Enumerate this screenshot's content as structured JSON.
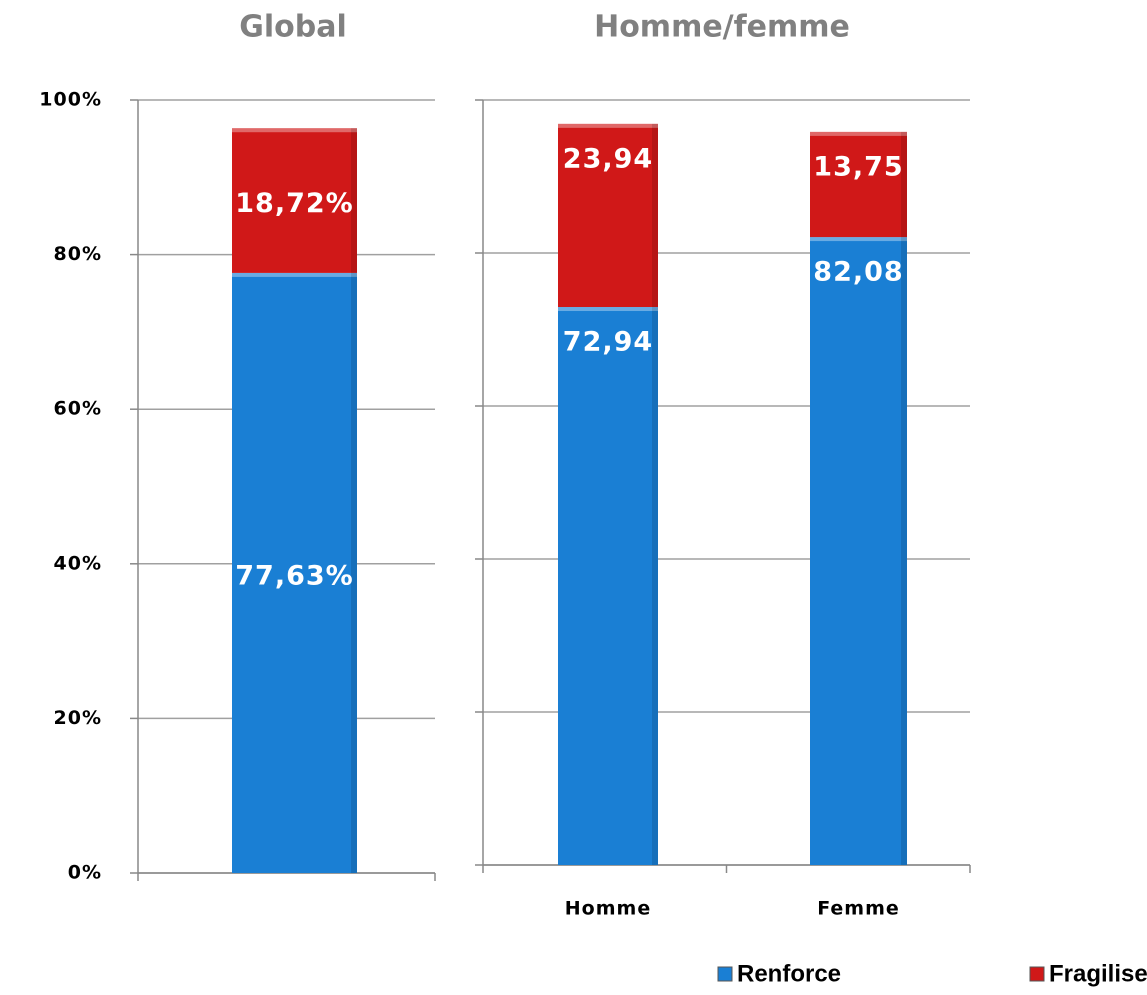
{
  "chart_data": [
    {
      "type": "bar",
      "stacked": true,
      "title": "Global",
      "categories": [
        null
      ],
      "series": [
        {
          "color": "#1a7fd4",
          "values": [
            77.63
          ],
          "value_labels": [
            "77,63%"
          ]
        },
        {
          "color": "#d01818",
          "values": [
            18.72
          ],
          "value_labels": [
            "18,72%"
          ]
        }
      ],
      "ylim": [
        0,
        100
      ],
      "yticks": [
        {
          "value": 0,
          "label": "0%"
        },
        {
          "value": 20,
          "label": "20%"
        },
        {
          "value": 40,
          "label": "40%"
        },
        {
          "value": 60,
          "label": "60%"
        },
        {
          "value": 80,
          "label": "80%"
        },
        {
          "value": 100,
          "label": "100%"
        }
      ],
      "grid": true
    },
    {
      "type": "bar",
      "stacked": true,
      "title": "Homme/femme",
      "categories": [
        "Homme",
        "Femme"
      ],
      "series": [
        {
          "name": "Renforce",
          "color": "#1a7fd4",
          "values": [
            72.94,
            82.08
          ],
          "value_labels": [
            "72,94",
            "82,08"
          ]
        },
        {
          "name": "Fragilise",
          "color": "#d01818",
          "values": [
            23.94,
            13.75
          ],
          "value_labels": [
            "23,94",
            "13,75"
          ]
        }
      ],
      "ylim": [
        0,
        100
      ],
      "yticks": [
        0,
        20,
        40,
        60,
        80,
        100
      ],
      "grid": true
    }
  ]
}
